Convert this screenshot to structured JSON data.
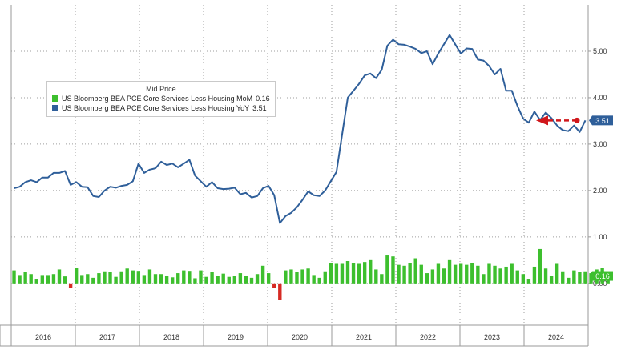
{
  "chart_data": {
    "type": "bar+line",
    "legend": {
      "title": "Mid Price",
      "entries": [
        {
          "label": "US Bloomberg BEA PCE Core Services Less Housing MoM",
          "value": "0.16",
          "color": "#3dbf2e"
        },
        {
          "label": "US Bloomberg BEA PCE Core Services Less Housing YoY",
          "value": "3.51",
          "color": "#2f5f9a"
        }
      ]
    },
    "x_labels": [
      "2016",
      "2017",
      "2018",
      "2019",
      "2020",
      "2021",
      "2022",
      "2023",
      "2024"
    ],
    "y_ticks": [
      "0.00",
      "1.00",
      "2.00",
      "3.00",
      "4.00",
      "5.00"
    ],
    "ylim": [
      -0.9,
      6.0
    ],
    "grid": true,
    "series": [
      {
        "name": "US Bloomberg BEA PCE Core Services Less Housing YoY",
        "kind": "line",
        "color": "#2f5f9a",
        "values": [
          2.05,
          2.08,
          2.18,
          2.22,
          2.18,
          2.28,
          2.28,
          2.38,
          2.38,
          2.42,
          2.12,
          2.18,
          2.08,
          2.07,
          1.88,
          1.86,
          2.0,
          2.08,
          2.06,
          2.1,
          2.12,
          2.2,
          2.58,
          2.38,
          2.45,
          2.48,
          2.62,
          2.55,
          2.58,
          2.5,
          2.58,
          2.66,
          2.32,
          2.2,
          2.08,
          2.18,
          2.05,
          2.03,
          2.04,
          2.06,
          1.92,
          1.95,
          1.85,
          1.88,
          2.05,
          2.1,
          1.9,
          1.3,
          1.45,
          1.52,
          1.64,
          1.8,
          1.98,
          1.9,
          1.88,
          2.0,
          2.2,
          2.4,
          3.2,
          4.0,
          4.15,
          4.3,
          4.48,
          4.52,
          4.42,
          4.6,
          5.12,
          5.25,
          5.15,
          5.14,
          5.1,
          5.05,
          4.96,
          5.0,
          4.72,
          4.95,
          5.15,
          5.35,
          5.15,
          4.95,
          5.06,
          5.05,
          4.82,
          4.8,
          4.68,
          4.5,
          4.62,
          4.15,
          4.15,
          3.82,
          3.55,
          3.46,
          3.7,
          3.52,
          3.68,
          3.56,
          3.4,
          3.3,
          3.28,
          3.4,
          3.26,
          3.51
        ]
      },
      {
        "name": "US Bloomberg BEA PCE Core Services Less Housing MoM",
        "kind": "bar",
        "color": "#3dbf2e",
        "negative_color": "#d62a24",
        "values": [
          0.28,
          0.18,
          0.24,
          0.2,
          0.1,
          0.18,
          0.18,
          0.2,
          0.3,
          0.15,
          -0.1,
          0.34,
          0.18,
          0.2,
          0.12,
          0.22,
          0.26,
          0.24,
          0.14,
          0.26,
          0.32,
          0.28,
          0.27,
          0.18,
          0.3,
          0.2,
          0.2,
          0.16,
          0.13,
          0.22,
          0.28,
          0.27,
          0.11,
          0.28,
          0.14,
          0.24,
          0.16,
          0.21,
          0.14,
          0.16,
          0.22,
          0.16,
          0.12,
          0.2,
          0.38,
          0.22,
          -0.1,
          -0.35,
          0.28,
          0.3,
          0.24,
          0.3,
          0.32,
          0.18,
          0.12,
          0.26,
          0.44,
          0.42,
          0.42,
          0.48,
          0.44,
          0.42,
          0.46,
          0.5,
          0.3,
          0.2,
          0.6,
          0.58,
          0.4,
          0.38,
          0.44,
          0.54,
          0.4,
          0.22,
          0.3,
          0.42,
          0.32,
          0.5,
          0.4,
          0.42,
          0.4,
          0.44,
          0.38,
          0.2,
          0.42,
          0.38,
          0.32,
          0.36,
          0.42,
          0.28,
          0.2,
          0.1,
          0.36,
          0.74,
          0.32,
          0.16,
          0.42,
          0.26,
          0.12,
          0.28,
          0.24,
          0.26,
          0.22,
          0.3,
          0.34,
          0.16
        ]
      }
    ],
    "markers": [
      {
        "series": "US Bloomberg BEA PCE Core Services Less Housing YoY",
        "value": "3.51",
        "color": "#2f5f9a"
      },
      {
        "series": "US Bloomberg BEA PCE Core Services Less Housing MoM",
        "value": "0.16",
        "color": "#3dbf2e"
      }
    ],
    "annotation_arrow": {
      "at_value": 3.51,
      "color": "#d0171b"
    }
  }
}
